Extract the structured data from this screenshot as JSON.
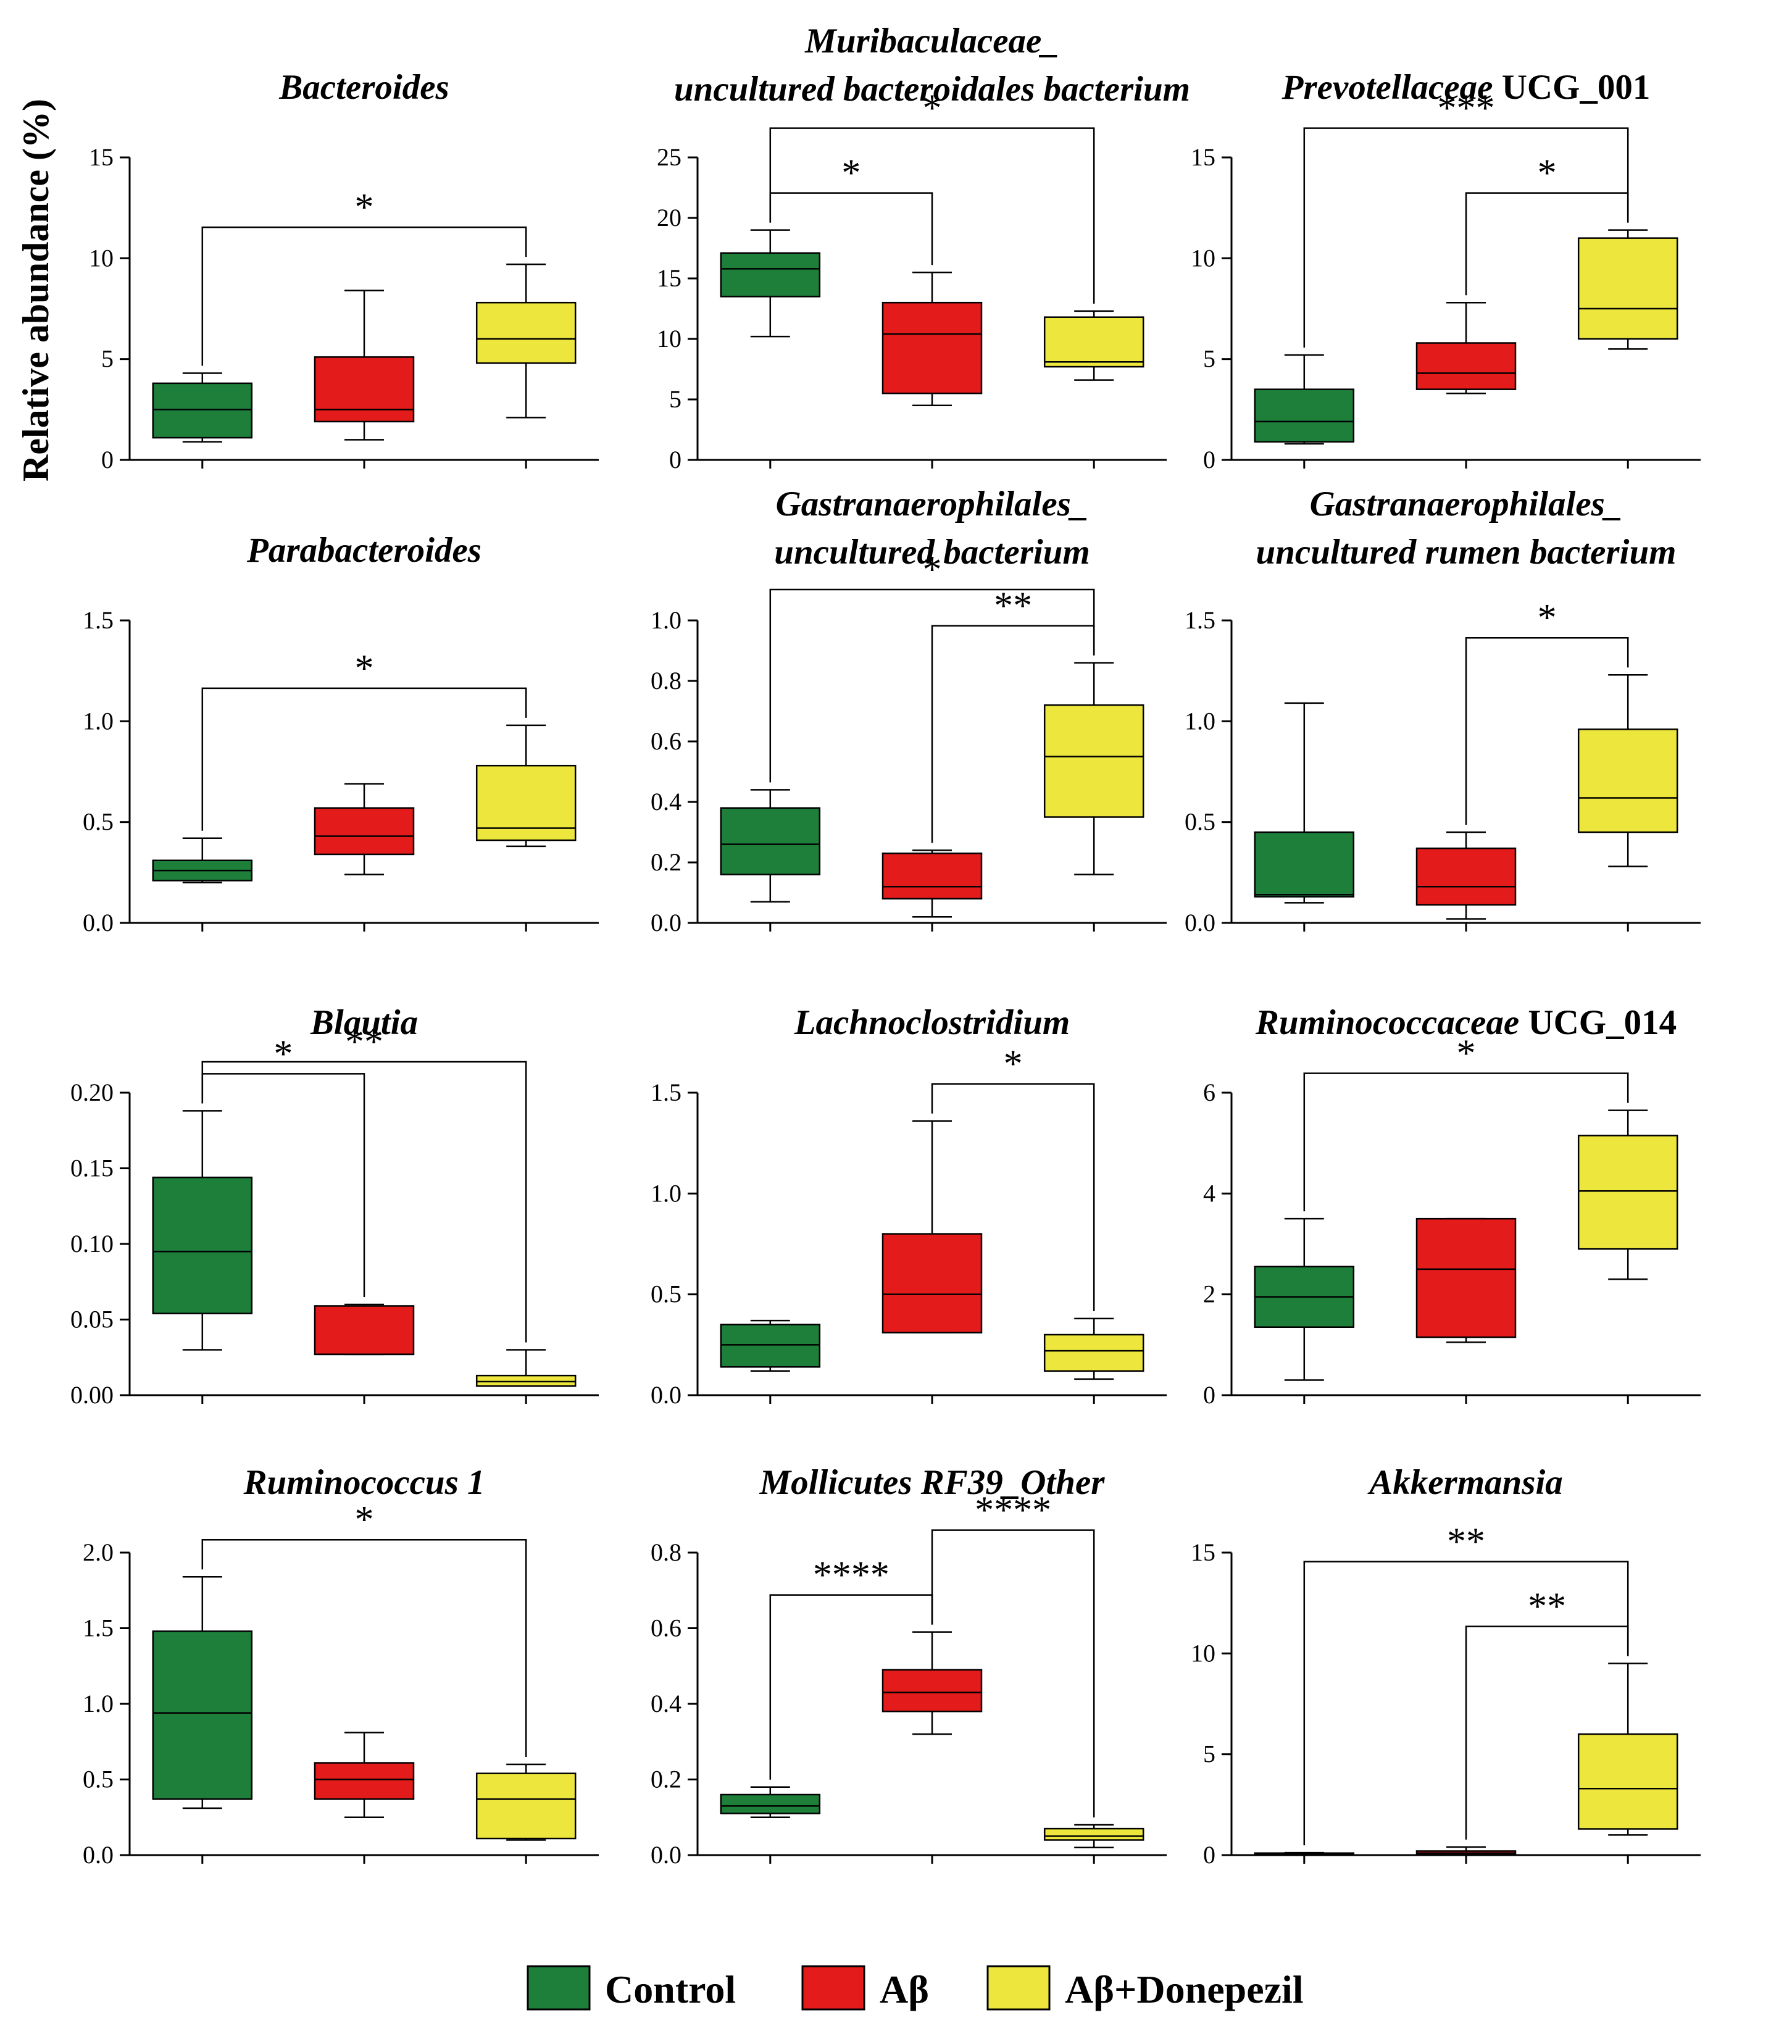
{
  "figure": {
    "ylabel": "Relative abundance (%)"
  },
  "legend": {
    "position": "bottom",
    "entries": [
      {
        "label": "Control",
        "color": "#1e7f3a"
      },
      {
        "label": "Aβ",
        "color": "#e31b1b"
      },
      {
        "label": "Aβ+Donepezil",
        "color": "#ece63d"
      }
    ]
  },
  "chart_data": [
    {
      "type": "box",
      "title_lines": [
        [
          {
            "t": "Bacteroides",
            "i": true
          }
        ]
      ],
      "ylim": [
        0,
        15
      ],
      "yticks": [
        "0",
        "5",
        "10",
        "15"
      ],
      "boxes": [
        {
          "min": 0.9,
          "q1": 1.1,
          "median": 2.5,
          "q3": 3.8,
          "max": 4.3
        },
        {
          "min": 1.0,
          "q1": 1.9,
          "median": 2.5,
          "q3": 5.1,
          "max": 8.4
        },
        {
          "min": 2.1,
          "q1": 4.8,
          "median": 6.0,
          "q3": 7.8,
          "max": 9.7
        }
      ],
      "sig": [
        {
          "from": 0,
          "to": 2,
          "label": "*"
        }
      ]
    },
    {
      "type": "box",
      "title_lines": [
        [
          {
            "t": "Muribaculaceae_",
            "i": true
          }
        ],
        [
          {
            "t": "uncultured bacteroidales bacterium",
            "i": true
          }
        ]
      ],
      "ylim": [
        0,
        25
      ],
      "yticks": [
        "0",
        "5",
        "10",
        "15",
        "20",
        "25"
      ],
      "boxes": [
        {
          "min": 10.2,
          "q1": 13.5,
          "median": 15.8,
          "q3": 17.1,
          "max": 19.0
        },
        {
          "min": 4.5,
          "q1": 5.5,
          "median": 10.4,
          "q3": 13.0,
          "max": 15.5
        },
        {
          "min": 6.6,
          "q1": 7.7,
          "median": 8.1,
          "q3": 11.8,
          "max": 12.3
        }
      ],
      "sig": [
        {
          "from": 0,
          "to": 1,
          "label": "*"
        },
        {
          "from": 0,
          "to": 2,
          "label": "*"
        }
      ]
    },
    {
      "type": "box",
      "title_lines": [
        [
          {
            "t": "Prevotellaceae",
            "i": true
          },
          {
            "t": " UCG_001",
            "i": false
          }
        ]
      ],
      "ylim": [
        0,
        15
      ],
      "yticks": [
        "0",
        "5",
        "10",
        "15"
      ],
      "boxes": [
        {
          "min": 0.8,
          "q1": 0.9,
          "median": 1.9,
          "q3": 3.5,
          "max": 5.2
        },
        {
          "min": 3.3,
          "q1": 3.5,
          "median": 4.3,
          "q3": 5.8,
          "max": 7.8
        },
        {
          "min": 5.5,
          "q1": 6.0,
          "median": 7.5,
          "q3": 11.0,
          "max": 11.4
        }
      ],
      "sig": [
        {
          "from": 0,
          "to": 2,
          "label": "***"
        },
        {
          "from": 1,
          "to": 2,
          "label": "*"
        }
      ]
    },
    {
      "type": "box",
      "title_lines": [
        [
          {
            "t": "Parabacteroides",
            "i": true
          }
        ]
      ],
      "ylim": [
        0,
        1.5
      ],
      "yticks": [
        "0.0",
        "0.5",
        "1.0",
        "1.5"
      ],
      "boxes": [
        {
          "min": 0.2,
          "q1": 0.21,
          "median": 0.26,
          "q3": 0.31,
          "max": 0.42
        },
        {
          "min": 0.24,
          "q1": 0.34,
          "median": 0.43,
          "q3": 0.57,
          "max": 0.69
        },
        {
          "min": 0.38,
          "q1": 0.41,
          "median": 0.47,
          "q3": 0.78,
          "max": 0.98
        }
      ],
      "sig": [
        {
          "from": 0,
          "to": 2,
          "label": "*"
        }
      ]
    },
    {
      "type": "box",
      "title_lines": [
        [
          {
            "t": "Gastranaerophilales_",
            "i": true
          }
        ],
        [
          {
            "t": "uncultured bacterium",
            "i": true
          }
        ]
      ],
      "ylim": [
        0,
        1.0
      ],
      "yticks": [
        "0.0",
        "0.2",
        "0.4",
        "0.6",
        "0.8",
        "1.0"
      ],
      "boxes": [
        {
          "min": 0.07,
          "q1": 0.16,
          "median": 0.26,
          "q3": 0.38,
          "max": 0.44
        },
        {
          "min": 0.02,
          "q1": 0.08,
          "median": 0.12,
          "q3": 0.23,
          "max": 0.24
        },
        {
          "min": 0.16,
          "q1": 0.35,
          "median": 0.55,
          "q3": 0.72,
          "max": 0.86
        }
      ],
      "sig": [
        {
          "from": 0,
          "to": 2,
          "label": "*"
        },
        {
          "from": 1,
          "to": 2,
          "label": "**"
        }
      ]
    },
    {
      "type": "box",
      "title_lines": [
        [
          {
            "t": "Gastranaerophilales_",
            "i": true
          }
        ],
        [
          {
            "t": "uncultured rumen bacterium",
            "i": true
          }
        ]
      ],
      "ylim": [
        0,
        1.5
      ],
      "yticks": [
        "0.0",
        "0.5",
        "1.0",
        "1.5"
      ],
      "boxes": [
        {
          "min": 0.1,
          "q1": 0.13,
          "median": 0.14,
          "q3": 0.45,
          "max": 1.09
        },
        {
          "min": 0.02,
          "q1": 0.09,
          "median": 0.18,
          "q3": 0.37,
          "max": 0.45
        },
        {
          "min": 0.28,
          "q1": 0.45,
          "median": 0.62,
          "q3": 0.96,
          "max": 1.23
        }
      ],
      "sig": [
        {
          "from": 1,
          "to": 2,
          "label": "*"
        }
      ]
    },
    {
      "type": "box",
      "title_lines": [
        [
          {
            "t": "Blautia",
            "i": true
          }
        ]
      ],
      "ylim": [
        0,
        0.2
      ],
      "yticks": [
        "0.00",
        "0.05",
        "0.10",
        "0.15",
        "0.20"
      ],
      "boxes": [
        {
          "min": 0.03,
          "q1": 0.054,
          "median": 0.095,
          "q3": 0.144,
          "max": 0.188
        },
        {
          "min": 0.027,
          "q1": 0.027,
          "median": 0.027,
          "q3": 0.059,
          "max": 0.06
        },
        {
          "min": 0.006,
          "q1": 0.006,
          "median": 0.009,
          "q3": 0.013,
          "max": 0.03
        }
      ],
      "sig": [
        {
          "from": 0,
          "to": 1,
          "label": "*"
        },
        {
          "from": 0,
          "to": 2,
          "label": "**"
        }
      ]
    },
    {
      "type": "box",
      "title_lines": [
        [
          {
            "t": "Lachnoclostridium",
            "i": true
          }
        ]
      ],
      "ylim": [
        0,
        1.5
      ],
      "yticks": [
        "0.0",
        "0.5",
        "1.0",
        "1.5"
      ],
      "boxes": [
        {
          "min": 0.12,
          "q1": 0.14,
          "median": 0.25,
          "q3": 0.35,
          "max": 0.37
        },
        {
          "min": 0.31,
          "q1": 0.31,
          "median": 0.5,
          "q3": 0.8,
          "max": 1.36
        },
        {
          "min": 0.08,
          "q1": 0.12,
          "median": 0.22,
          "q3": 0.3,
          "max": 0.38
        }
      ],
      "sig": [
        {
          "from": 1,
          "to": 2,
          "label": "*"
        }
      ]
    },
    {
      "type": "box",
      "title_lines": [
        [
          {
            "t": "Ruminococcaceae",
            "i": true
          },
          {
            "t": " UCG_014",
            "i": false
          }
        ]
      ],
      "ylim": [
        0,
        6
      ],
      "yticks": [
        "0",
        "2",
        "4",
        "6"
      ],
      "boxes": [
        {
          "min": 0.3,
          "q1": 1.35,
          "median": 1.95,
          "q3": 2.55,
          "max": 3.5
        },
        {
          "min": 1.05,
          "q1": 1.15,
          "median": 2.5,
          "q3": 3.5,
          "max": 3.5
        },
        {
          "min": 2.3,
          "q1": 2.9,
          "median": 4.05,
          "q3": 5.15,
          "max": 5.65
        }
      ],
      "sig": [
        {
          "from": 0,
          "to": 2,
          "label": "*"
        }
      ]
    },
    {
      "type": "box",
      "title_lines": [
        [
          {
            "t": "Ruminococcus 1",
            "i": true
          }
        ]
      ],
      "ylim": [
        0,
        2.0
      ],
      "yticks": [
        "0.0",
        "0.5",
        "1.0",
        "1.5",
        "2.0"
      ],
      "boxes": [
        {
          "min": 0.31,
          "q1": 0.37,
          "median": 0.94,
          "q3": 1.48,
          "max": 1.84
        },
        {
          "min": 0.25,
          "q1": 0.37,
          "median": 0.5,
          "q3": 0.61,
          "max": 0.81
        },
        {
          "min": 0.1,
          "q1": 0.11,
          "median": 0.37,
          "q3": 0.54,
          "max": 0.6
        }
      ],
      "sig": [
        {
          "from": 0,
          "to": 2,
          "label": "*"
        }
      ]
    },
    {
      "type": "box",
      "title_lines": [
        [
          {
            "t": "Mollicutes RF39_Other",
            "i": true
          }
        ]
      ],
      "ylim": [
        0,
        0.8
      ],
      "yticks": [
        "0.0",
        "0.2",
        "0.4",
        "0.6",
        "0.8"
      ],
      "boxes": [
        {
          "min": 0.1,
          "q1": 0.11,
          "median": 0.13,
          "q3": 0.16,
          "max": 0.18
        },
        {
          "min": 0.32,
          "q1": 0.38,
          "median": 0.43,
          "q3": 0.49,
          "max": 0.59
        },
        {
          "min": 0.02,
          "q1": 0.04,
          "median": 0.05,
          "q3": 0.07,
          "max": 0.08
        }
      ],
      "sig": [
        {
          "from": 0,
          "to": 1,
          "label": "****"
        },
        {
          "from": 1,
          "to": 2,
          "label": "****"
        }
      ]
    },
    {
      "type": "box",
      "title_lines": [
        [
          {
            "t": "Akkermansia",
            "i": true
          }
        ]
      ],
      "ylim": [
        0,
        15
      ],
      "yticks": [
        "0",
        "5",
        "10",
        "15"
      ],
      "boxes": [
        {
          "min": 0.05,
          "q1": 0.05,
          "median": 0.07,
          "q3": 0.1,
          "max": 0.12
        },
        {
          "min": 0.05,
          "q1": 0.05,
          "median": 0.1,
          "q3": 0.2,
          "max": 0.4
        },
        {
          "min": 1.0,
          "q1": 1.3,
          "median": 3.3,
          "q3": 6.0,
          "max": 9.5
        }
      ],
      "sig": [
        {
          "from": 0,
          "to": 2,
          "label": "**"
        },
        {
          "from": 1,
          "to": 2,
          "label": "**"
        }
      ]
    }
  ]
}
